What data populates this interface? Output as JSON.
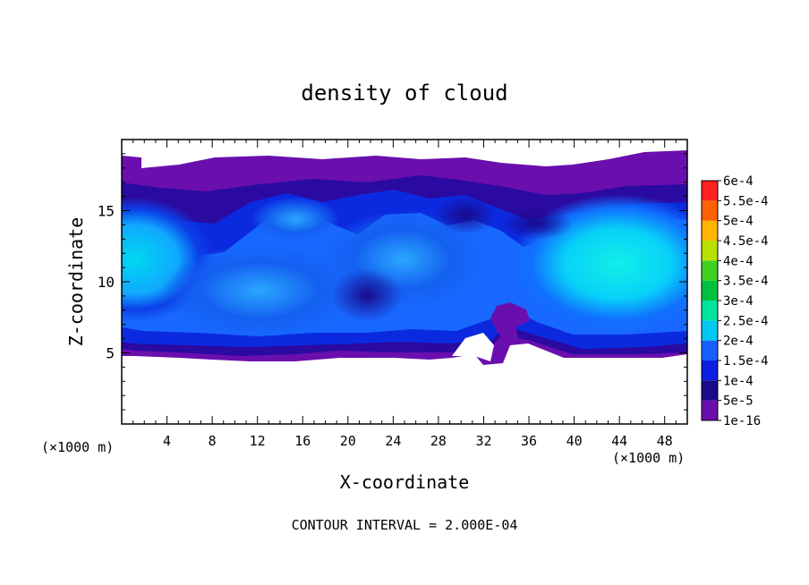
{
  "chart_data": {
    "type": "heatmap",
    "title": "density of cloud",
    "xlabel": "X-coordinate",
    "ylabel": "Z-coordinate",
    "x_unit_left": "(×1000 m)",
    "x_unit_right": "(×1000 m)",
    "xlim": [
      0,
      50
    ],
    "ylim": [
      0,
      20
    ],
    "x_ticks": [
      "4",
      "8",
      "12",
      "16",
      "20",
      "24",
      "28",
      "32",
      "36",
      "40",
      "44",
      "48"
    ],
    "y_ticks": [
      "5",
      "10",
      "15"
    ],
    "colorbar": {
      "labels": [
        "1e-16",
        "5e-5",
        "1e-4",
        "1.5e-4",
        "2e-4",
        "2.5e-4",
        "3e-4",
        "3.5e-4",
        "4e-4",
        "4.5e-4",
        "5e-4",
        "5.5e-4",
        "6e-4"
      ],
      "colors": [
        "#6a0fae",
        "#1a0a8c",
        "#0b20e0",
        "#1560ff",
        "#00c8f0",
        "#00e4a0",
        "#00c040",
        "#40d020",
        "#b8e000",
        "#ffb400",
        "#ff6000",
        "#ff2020",
        "#ff8c8c"
      ]
    },
    "grid": false,
    "footer": "CONTOUR INTERVAL = 2.000E-04"
  }
}
